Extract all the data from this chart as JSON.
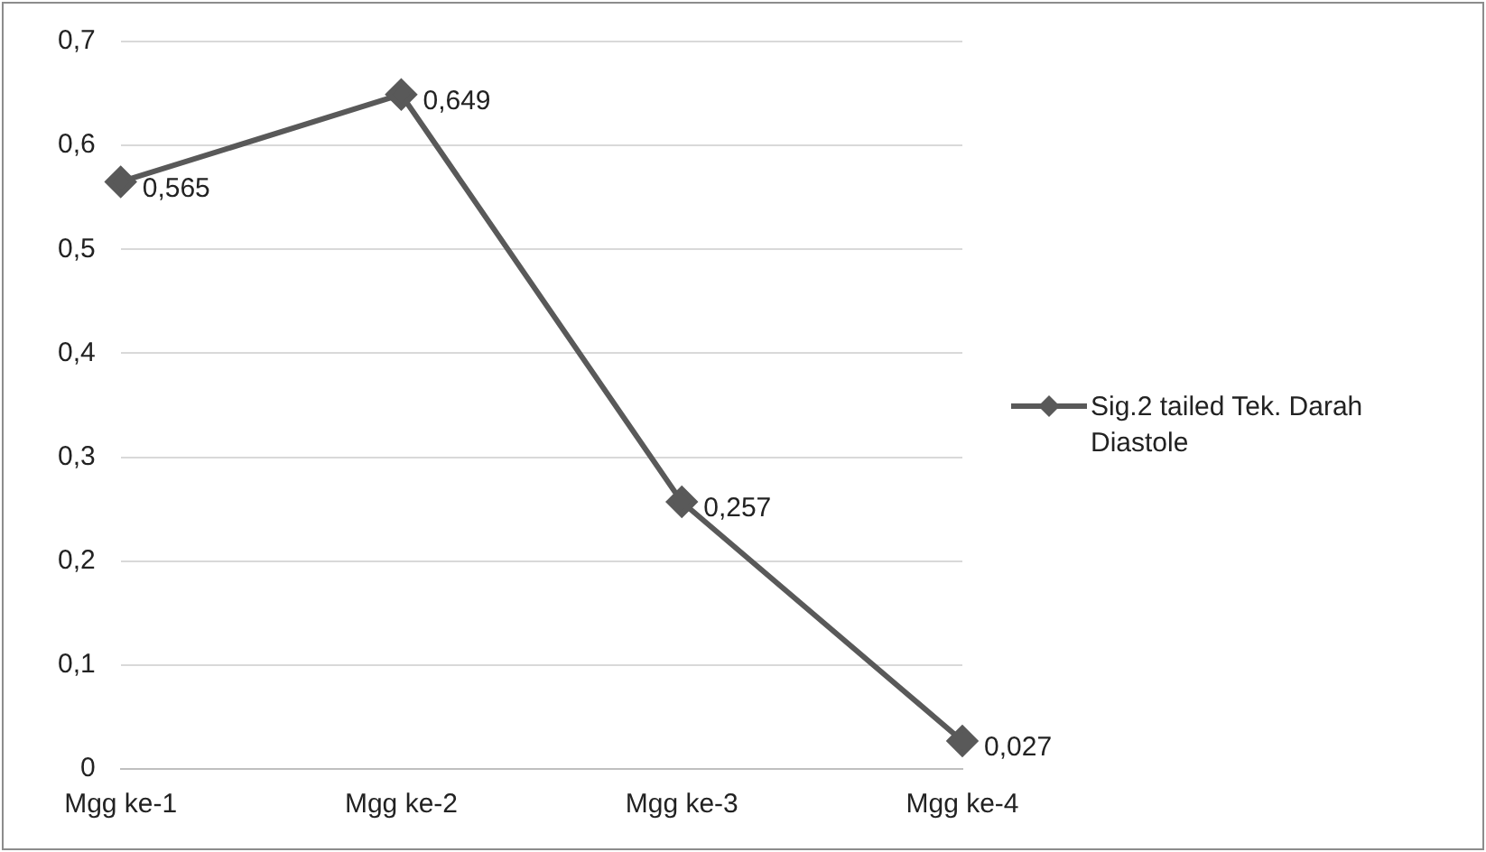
{
  "chart_data": {
    "type": "line",
    "categories": [
      "Mgg ke-1",
      "Mgg ke-2",
      "Mgg ke-3",
      "Mgg ke-4"
    ],
    "series": [
      {
        "name": "Sig.2 tailed Tek. Darah Diastole",
        "color": "#595959",
        "values": [
          0.565,
          0.649,
          0.257,
          0.027
        ],
        "value_labels": [
          "0,565",
          "0,649",
          "0,257",
          "0,027"
        ]
      }
    ],
    "ylim": [
      0,
      0.7
    ],
    "yticks": [
      0,
      {
        "value": 0.1,
        "label": "0,1"
      },
      {
        "value": 0.2,
        "label": "0,2"
      },
      {
        "value": 0.3,
        "label": "0,3"
      },
      {
        "value": 0.4,
        "label": "0,4"
      },
      {
        "value": 0.5,
        "label": "0,5"
      },
      {
        "value": 0.6,
        "label": "0,6"
      },
      {
        "value": 0.7,
        "label": "0,7"
      }
    ],
    "grid": "y",
    "legend": "right",
    "marker": "diamond",
    "line_style": "solid"
  }
}
